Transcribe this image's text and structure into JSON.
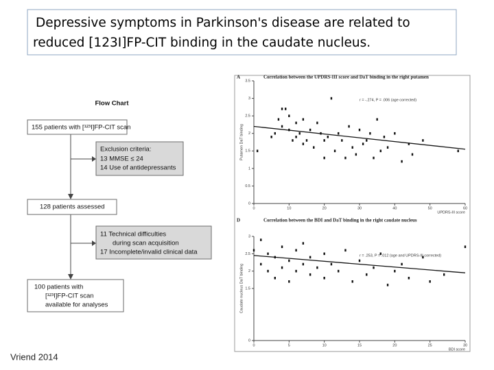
{
  "title": {
    "line1": "Depressive symptoms in Parkinson's disease are related to",
    "line2": "reduced [123I]FP-CIT binding in the caudate nucleus."
  },
  "flow_chart": {
    "title": "Flow Chart",
    "box1": "155 patients with [¹²³I]FP-CIT scan",
    "exclusion": [
      "Exclusion criteria:",
      "13  MMSE ≤ 24",
      "14  Use of antidepressants"
    ],
    "box2": "128 patients assessed",
    "exclusion2": [
      "11  Technical difficulties",
      "during scan acquisition",
      "17  Incomplete/invalid clinical data"
    ],
    "box3": [
      "100 patients with",
      "[¹²³I]FP-CIT scan",
      "available for analyses"
    ]
  },
  "footer": "Vriend 2014",
  "chart_data": [
    {
      "type": "scatter",
      "panel": "A",
      "title": "Correlation between the UPDRS-III score and DaT binding in the right putamen",
      "annotation": "r = -.274, P = .006 (age corrected)",
      "xlabel": "UPDRS-III score",
      "ylabel": "Putamen DaT binding",
      "x": [
        1,
        5,
        6,
        7,
        8,
        8,
        9,
        10,
        10,
        11,
        12,
        12,
        13,
        14,
        14,
        15,
        16,
        17,
        18,
        19,
        20,
        20,
        21,
        22,
        23,
        24,
        25,
        26,
        27,
        28,
        29,
        30,
        31,
        32,
        33,
        34,
        35,
        36,
        37,
        38,
        40,
        42,
        44,
        45,
        48,
        58
      ],
      "y": [
        1.5,
        1.9,
        2.0,
        2.4,
        2.7,
        2.2,
        2.7,
        2.1,
        2.5,
        1.8,
        2.3,
        1.9,
        2.0,
        2.4,
        1.7,
        1.8,
        2.1,
        1.6,
        2.3,
        2.0,
        1.8,
        1.3,
        1.9,
        3.0,
        1.5,
        2.0,
        1.8,
        1.3,
        2.2,
        1.6,
        1.4,
        2.1,
        1.7,
        1.8,
        2.0,
        1.3,
        2.4,
        1.5,
        1.9,
        1.6,
        2.0,
        1.2,
        1.7,
        1.4,
        1.8,
        1.5
      ],
      "fit": {
        "x": [
          0,
          60
        ],
        "y": [
          2.2,
          1.55
        ]
      },
      "xlim": [
        0,
        60
      ],
      "ylim": [
        0,
        3.5
      ],
      "xticks": [
        0,
        10,
        20,
        30,
        40,
        50,
        60
      ],
      "yticks": [
        0,
        0.5,
        1,
        1.5,
        2,
        2.5,
        3,
        3.5
      ]
    },
    {
      "type": "scatter",
      "panel": "D",
      "title": "Correlation between the BDI and DaT binding in the right caudate nucleus",
      "annotation": "r = .253, P = .012 (age and UPDRS-III corrected)",
      "xlabel": "BDI score",
      "ylabel": "Caudate nucleus DaT binding",
      "x": [
        0,
        1,
        1,
        2,
        2,
        3,
        3,
        4,
        4,
        5,
        5,
        6,
        6,
        7,
        7,
        8,
        8,
        9,
        10,
        10,
        11,
        12,
        13,
        14,
        15,
        16,
        17,
        18,
        19,
        20,
        21,
        22,
        24,
        25,
        27,
        30
      ],
      "y": [
        2.6,
        2.9,
        2.2,
        2.5,
        2.0,
        2.4,
        1.8,
        2.7,
        2.1,
        2.3,
        1.7,
        2.6,
        2.0,
        2.8,
        2.2,
        2.4,
        1.9,
        2.1,
        2.5,
        1.8,
        2.2,
        2.0,
        2.6,
        1.7,
        2.3,
        1.9,
        2.1,
        2.5,
        1.6,
        2.0,
        2.2,
        1.8,
        2.4,
        1.7,
        1.9,
        2.7
      ],
      "fit": {
        "x": [
          0,
          30
        ],
        "y": [
          2.45,
          1.95
        ]
      },
      "xlim": [
        0,
        30
      ],
      "ylim": [
        0,
        3
      ],
      "xticks": [
        0,
        5,
        10,
        15,
        20,
        25,
        30
      ],
      "yticks": [
        0,
        1.5,
        2,
        2.5,
        3
      ]
    }
  ]
}
